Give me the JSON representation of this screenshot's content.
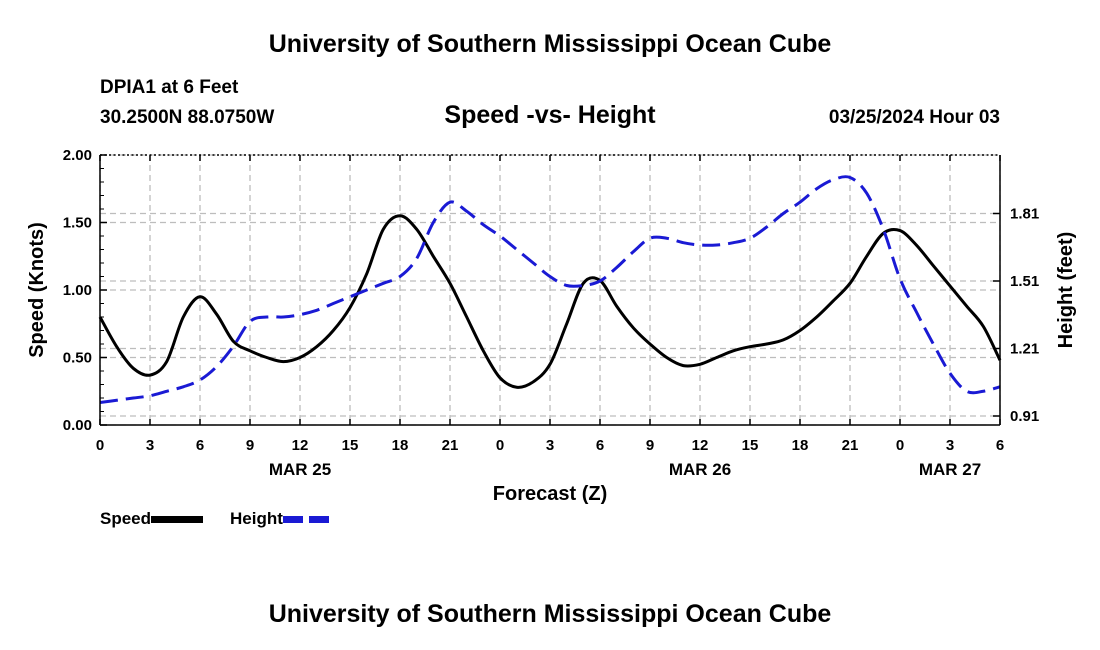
{
  "header": {
    "title": "University of Southern Mississippi Ocean Cube",
    "station": "DPIA1 at 6 Feet",
    "coords": "30.2500N  88.0750W",
    "subtitle": "Speed -vs- Height",
    "datetime": "03/25/2024 Hour 03"
  },
  "footer": {
    "title": "University of Southern Mississippi Ocean Cube"
  },
  "legend": {
    "speed_label": "Speed",
    "height_label": "Height"
  },
  "colors": {
    "speed": "#000000",
    "height": "#1a1ad4",
    "grid": "#bdbdbd"
  },
  "chart_data": {
    "type": "line",
    "xlabel": "Forecast (Z)",
    "ylabel_left": "Speed (Knots)",
    "ylabel_right": "Height (feet)",
    "x_hours_range": [
      0,
      54
    ],
    "x_ticks": [
      {
        "hour": 0,
        "label": "0"
      },
      {
        "hour": 3,
        "label": "3"
      },
      {
        "hour": 6,
        "label": "6"
      },
      {
        "hour": 9,
        "label": "9"
      },
      {
        "hour": 12,
        "label": "12"
      },
      {
        "hour": 15,
        "label": "15"
      },
      {
        "hour": 18,
        "label": "18"
      },
      {
        "hour": 21,
        "label": "21"
      },
      {
        "hour": 24,
        "label": "0"
      },
      {
        "hour": 27,
        "label": "3"
      },
      {
        "hour": 30,
        "label": "6"
      },
      {
        "hour": 33,
        "label": "9"
      },
      {
        "hour": 36,
        "label": "12"
      },
      {
        "hour": 39,
        "label": "15"
      },
      {
        "hour": 42,
        "label": "18"
      },
      {
        "hour": 45,
        "label": "21"
      },
      {
        "hour": 48,
        "label": "0"
      },
      {
        "hour": 51,
        "label": "3"
      },
      {
        "hour": 54,
        "label": "6"
      }
    ],
    "date_labels": [
      {
        "hour": 12,
        "label": "MAR 25"
      },
      {
        "hour": 36,
        "label": "MAR 26"
      },
      {
        "hour": 51,
        "label": "MAR 27"
      }
    ],
    "y_left": {
      "min": 0,
      "max": 2,
      "ticks": [
        "0.00",
        "0.50",
        "1.00",
        "1.50",
        "2.00"
      ]
    },
    "y_right": {
      "min": 0.87,
      "max": 2.07,
      "ticks": [
        "0.91",
        "1.21",
        "1.51",
        "1.81"
      ]
    },
    "series": [
      {
        "name": "Speed",
        "axis": "left",
        "style": "solid",
        "points": [
          [
            0,
            0.8
          ],
          [
            1,
            0.58
          ],
          [
            2,
            0.42
          ],
          [
            3,
            0.37
          ],
          [
            4,
            0.47
          ],
          [
            5,
            0.8
          ],
          [
            6,
            0.95
          ],
          [
            7,
            0.82
          ],
          [
            8,
            0.62
          ],
          [
            9,
            0.55
          ],
          [
            10,
            0.5
          ],
          [
            11,
            0.47
          ],
          [
            12,
            0.5
          ],
          [
            13,
            0.58
          ],
          [
            14,
            0.7
          ],
          [
            15,
            0.87
          ],
          [
            16,
            1.12
          ],
          [
            17,
            1.45
          ],
          [
            18,
            1.55
          ],
          [
            19,
            1.45
          ],
          [
            20,
            1.25
          ],
          [
            21,
            1.05
          ],
          [
            22,
            0.8
          ],
          [
            23,
            0.55
          ],
          [
            24,
            0.35
          ],
          [
            25,
            0.28
          ],
          [
            26,
            0.32
          ],
          [
            27,
            0.45
          ],
          [
            28,
            0.75
          ],
          [
            29,
            1.05
          ],
          [
            30,
            1.07
          ],
          [
            31,
            0.88
          ],
          [
            32,
            0.72
          ],
          [
            33,
            0.6
          ],
          [
            34,
            0.5
          ],
          [
            35,
            0.44
          ],
          [
            36,
            0.45
          ],
          [
            37,
            0.5
          ],
          [
            38,
            0.55
          ],
          [
            39,
            0.58
          ],
          [
            40,
            0.6
          ],
          [
            41,
            0.63
          ],
          [
            42,
            0.7
          ],
          [
            43,
            0.8
          ],
          [
            44,
            0.92
          ],
          [
            45,
            1.05
          ],
          [
            46,
            1.25
          ],
          [
            47,
            1.42
          ],
          [
            48,
            1.44
          ],
          [
            49,
            1.33
          ],
          [
            50,
            1.18
          ],
          [
            51,
            1.03
          ],
          [
            52,
            0.88
          ],
          [
            53,
            0.73
          ],
          [
            54,
            0.48
          ]
        ]
      },
      {
        "name": "Height",
        "axis": "right",
        "style": "dashed",
        "points": [
          [
            0,
            0.97
          ],
          [
            1,
            0.98
          ],
          [
            2,
            0.99
          ],
          [
            3,
            1.0
          ],
          [
            4,
            1.02
          ],
          [
            5,
            1.04
          ],
          [
            6,
            1.07
          ],
          [
            7,
            1.13
          ],
          [
            8,
            1.22
          ],
          [
            9,
            1.33
          ],
          [
            10,
            1.35
          ],
          [
            11,
            1.35
          ],
          [
            12,
            1.36
          ],
          [
            13,
            1.38
          ],
          [
            14,
            1.41
          ],
          [
            15,
            1.44
          ],
          [
            16,
            1.47
          ],
          [
            17,
            1.5
          ],
          [
            18,
            1.53
          ],
          [
            19,
            1.61
          ],
          [
            20,
            1.77
          ],
          [
            21,
            1.86
          ],
          [
            22,
            1.82
          ],
          [
            23,
            1.76
          ],
          [
            24,
            1.71
          ],
          [
            25,
            1.65
          ],
          [
            26,
            1.59
          ],
          [
            27,
            1.53
          ],
          [
            28,
            1.49
          ],
          [
            29,
            1.49
          ],
          [
            30,
            1.51
          ],
          [
            31,
            1.57
          ],
          [
            32,
            1.64
          ],
          [
            33,
            1.7
          ],
          [
            34,
            1.7
          ],
          [
            35,
            1.68
          ],
          [
            36,
            1.67
          ],
          [
            37,
            1.67
          ],
          [
            38,
            1.68
          ],
          [
            39,
            1.7
          ],
          [
            40,
            1.75
          ],
          [
            41,
            1.81
          ],
          [
            42,
            1.86
          ],
          [
            43,
            1.92
          ],
          [
            44,
            1.96
          ],
          [
            45,
            1.97
          ],
          [
            46,
            1.9
          ],
          [
            47,
            1.74
          ],
          [
            48,
            1.52
          ],
          [
            49,
            1.37
          ],
          [
            50,
            1.23
          ],
          [
            51,
            1.1
          ],
          [
            52,
            1.02
          ],
          [
            53,
            1.02
          ],
          [
            54,
            1.04
          ]
        ]
      }
    ]
  }
}
